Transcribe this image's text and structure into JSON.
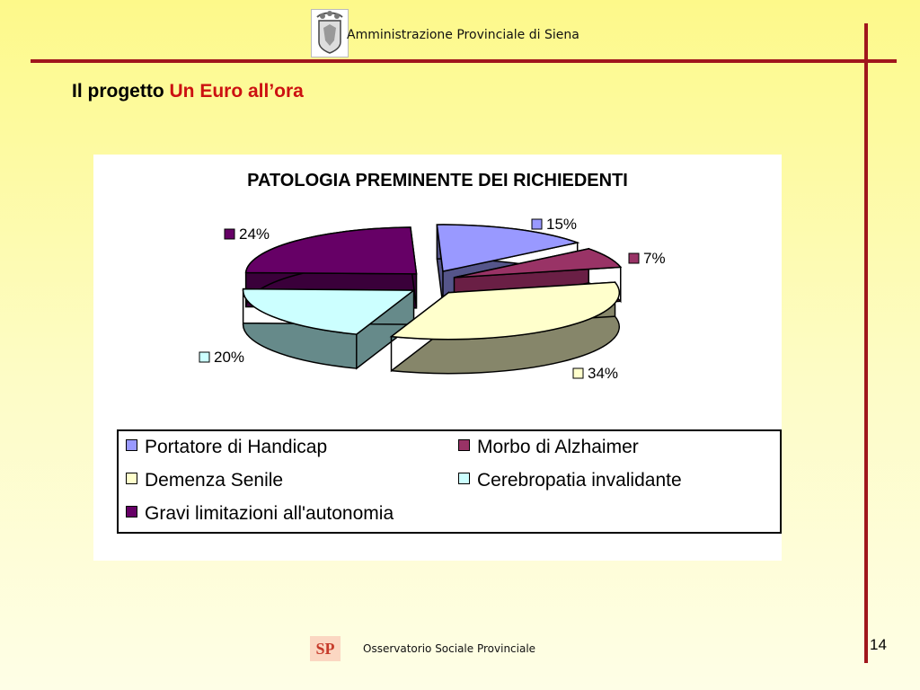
{
  "header": {
    "organization": "Amministrazione Provinciale di Siena"
  },
  "title": {
    "main": "Il progetto ",
    "highlight": "Un Euro all’ora"
  },
  "colors": {
    "accent_red": "#cc1111",
    "rule_color": "#a0161c"
  },
  "chart_data": {
    "type": "pie",
    "title": "PATOLOGIA PREMINENTE DEI RICHIEDENTI",
    "slices": [
      {
        "label": "Portatore di Handicap",
        "value": 15,
        "value_label": "15%",
        "color": "#9999ff",
        "side_color": "#55558a"
      },
      {
        "label": "Morbo di Alzhaimer",
        "value": 7,
        "value_label": "7%",
        "color": "#993366",
        "side_color": "#6a1f45"
      },
      {
        "label": "Demenza Senile",
        "value": 34,
        "value_label": "34%",
        "color": "#ffffcc",
        "side_color": "#86866a"
      },
      {
        "label": "Cerebropatia invalidante",
        "value": 20,
        "value_label": "20%",
        "color": "#ccffff",
        "side_color": "#668a8a"
      },
      {
        "label": "Gravi limitazioni all'autonomia",
        "value": 24,
        "value_label": "24%",
        "color": "#660066",
        "side_color": "#3a003a"
      }
    ],
    "legend_position": "bottom"
  },
  "footer": {
    "observatory": "Osservatorio Sociale Provinciale",
    "logo_text": "SP",
    "page_number": "14"
  }
}
